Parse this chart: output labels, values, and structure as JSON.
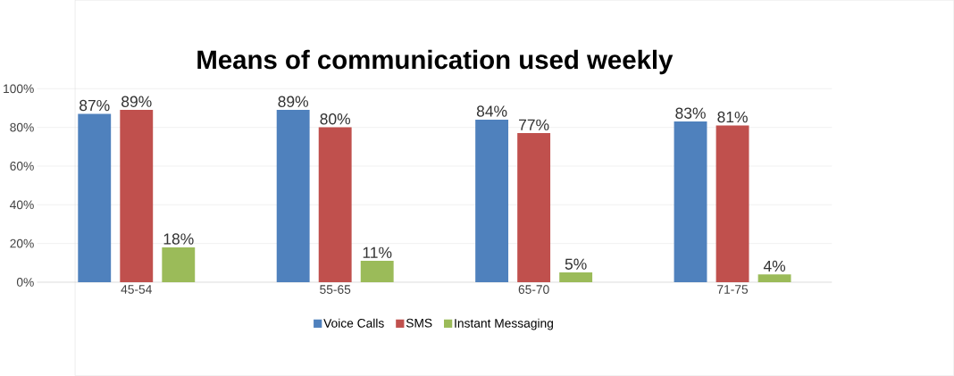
{
  "chart_data": {
    "type": "bar",
    "title": "Means of communication used weekly",
    "categories": [
      "45-54",
      "55-65",
      "65-70",
      "71-75"
    ],
    "series": [
      {
        "name": "Voice Calls",
        "color": "#4f81bd",
        "values": [
          87,
          89,
          84,
          83
        ],
        "value_labels": [
          "87%",
          "89%",
          "84%",
          "83%"
        ]
      },
      {
        "name": "SMS",
        "color": "#c0504d",
        "values": [
          89,
          80,
          77,
          81
        ],
        "value_labels": [
          "89%",
          "80%",
          "77%",
          "81%"
        ]
      },
      {
        "name": "Instant Messaging",
        "color": "#9bbb59",
        "values": [
          18,
          11,
          5,
          4
        ],
        "value_labels": [
          "18%",
          "11%",
          "5%",
          "4%"
        ]
      }
    ],
    "ylim": [
      0,
      100
    ],
    "yticks": [
      {
        "value": 0,
        "label": "0%"
      },
      {
        "value": 20,
        "label": "20%"
      },
      {
        "value": 40,
        "label": "40%"
      },
      {
        "value": 60,
        "label": "60%"
      },
      {
        "value": 80,
        "label": "80%"
      },
      {
        "value": 100,
        "label": "100%"
      }
    ],
    "grid": "y",
    "legend": "bottom"
  }
}
